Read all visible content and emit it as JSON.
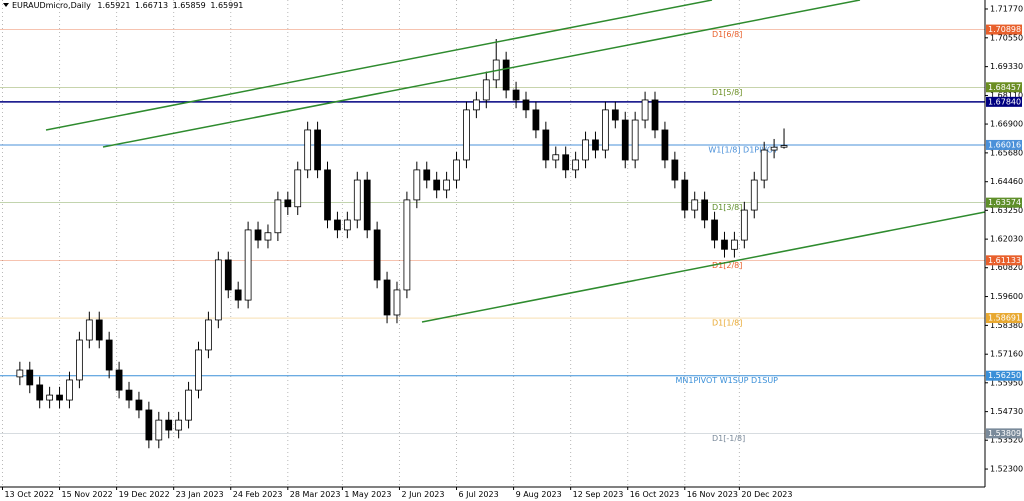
{
  "chart_data": {
    "type": "candlestick",
    "title": "EURAUDmicro,Daily",
    "xlim": [
      -8,
      389
    ],
    "ylim": [
      1.5154,
      1.7215
    ],
    "up_color": "#ffffff",
    "down_color": "#000000",
    "x": [
      0,
      4,
      8,
      12,
      16,
      20,
      24,
      28,
      32,
      36,
      40,
      44,
      48,
      52,
      56,
      60,
      64,
      68,
      72,
      76,
      80,
      84,
      88,
      92,
      96,
      100,
      104,
      108,
      112,
      116,
      120,
      124,
      128,
      132,
      136,
      140,
      144,
      148,
      152,
      156,
      160,
      164,
      168,
      172,
      176,
      180,
      184,
      188,
      192,
      196,
      200,
      204,
      208,
      212,
      216,
      220,
      224,
      228,
      232,
      236,
      240,
      244,
      248,
      252,
      256,
      260,
      264,
      268,
      272,
      276,
      280,
      284,
      288,
      292,
      296,
      300,
      304,
      308
    ],
    "open": [
      1.562,
      1.5649,
      1.5586,
      1.5522,
      1.5543,
      1.5522,
      1.5607,
      1.5776,
      1.5861,
      1.5776,
      1.5649,
      1.5564,
      1.5522,
      1.548,
      1.5353,
      1.5437,
      1.5395,
      1.5437,
      1.5564,
      1.5734,
      1.5861,
      1.6115,
      1.5988,
      1.5945,
      1.6242,
      1.6199,
      1.623,
      1.6369,
      1.634,
      1.6496,
      1.6665,
      1.6496,
      1.6284,
      1.6242,
      1.6284,
      1.6453,
      1.6242,
      1.603,
      1.5882,
      1.5988,
      1.6369,
      1.6496,
      1.6453,
      1.6411,
      1.6453,
      1.6538,
      1.675,
      1.6792,
      1.6877,
      1.6961,
      1.6834,
      1.6792,
      1.675,
      1.6665,
      1.6538,
      1.656,
      1.6496,
      1.6538,
      1.6623,
      1.658,
      1.675,
      1.6707,
      1.6538,
      1.6707,
      1.6792,
      1.6665,
      1.6538,
      1.6453,
      1.6326,
      1.6369,
      1.6284,
      1.6199,
      1.616,
      1.6199,
      1.6326,
      1.6453,
      1.658,
      1.65921
    ],
    "high": [
      1.5684,
      1.5684,
      1.5621,
      1.5578,
      1.5578,
      1.5642,
      1.5811,
      1.5896,
      1.5896,
      1.5811,
      1.5684,
      1.5599,
      1.5557,
      1.5515,
      1.5472,
      1.5472,
      1.5472,
      1.5599,
      1.5769,
      1.5896,
      1.615,
      1.615,
      1.6023,
      1.6277,
      1.6277,
      1.6265,
      1.6404,
      1.6404,
      1.6531,
      1.67,
      1.67,
      1.6531,
      1.6319,
      1.6319,
      1.6488,
      1.6488,
      1.6277,
      1.6065,
      1.6023,
      1.6404,
      1.6531,
      1.6531,
      1.6488,
      1.6488,
      1.6573,
      1.6785,
      1.6827,
      1.6912,
      1.705,
      1.6996,
      1.6869,
      1.6827,
      1.6785,
      1.67,
      1.6595,
      1.6595,
      1.6573,
      1.6658,
      1.6658,
      1.6785,
      1.6785,
      1.6742,
      1.6742,
      1.6827,
      1.6827,
      1.67,
      1.6573,
      1.6488,
      1.6404,
      1.6404,
      1.6319,
      1.6234,
      1.6234,
      1.6361,
      1.6488,
      1.6615,
      1.6627,
      1.66713
    ],
    "low": [
      1.5585,
      1.5551,
      1.5487,
      1.5487,
      1.5487,
      1.5487,
      1.5572,
      1.5741,
      1.5741,
      1.5614,
      1.5529,
      1.5487,
      1.5445,
      1.5318,
      1.5318,
      1.536,
      1.536,
      1.5402,
      1.5529,
      1.5699,
      1.5826,
      1.5953,
      1.591,
      1.591,
      1.6164,
      1.6164,
      1.6195,
      1.6305,
      1.6305,
      1.6461,
      1.6461,
      1.6249,
      1.6207,
      1.6207,
      1.6249,
      1.6207,
      1.5995,
      1.5847,
      1.5847,
      1.5953,
      1.6334,
      1.6418,
      1.6376,
      1.6376,
      1.6418,
      1.6503,
      1.6715,
      1.6757,
      1.6842,
      1.6799,
      1.6757,
      1.6715,
      1.663,
      1.6503,
      1.6503,
      1.6461,
      1.6461,
      1.6503,
      1.6545,
      1.6545,
      1.6672,
      1.6503,
      1.6503,
      1.6672,
      1.663,
      1.6503,
      1.6418,
      1.6291,
      1.6291,
      1.6249,
      1.6164,
      1.6125,
      1.6125,
      1.6164,
      1.6291,
      1.6418,
      1.6545,
      1.65859
    ],
    "close": [
      1.5649,
      1.5586,
      1.5522,
      1.5543,
      1.5522,
      1.5607,
      1.5776,
      1.5861,
      1.5776,
      1.5649,
      1.5564,
      1.5522,
      1.548,
      1.5353,
      1.5437,
      1.5395,
      1.5437,
      1.5564,
      1.5734,
      1.5861,
      1.6115,
      1.5988,
      1.5945,
      1.6242,
      1.6199,
      1.623,
      1.6369,
      1.634,
      1.6496,
      1.6665,
      1.6496,
      1.6284,
      1.6242,
      1.6284,
      1.6453,
      1.6242,
      1.603,
      1.5882,
      1.5988,
      1.6369,
      1.6496,
      1.6453,
      1.6411,
      1.6453,
      1.6538,
      1.675,
      1.6792,
      1.6877,
      1.6961,
      1.6834,
      1.6792,
      1.675,
      1.6665,
      1.6538,
      1.656,
      1.6496,
      1.6538,
      1.6623,
      1.658,
      1.675,
      1.6707,
      1.6538,
      1.6707,
      1.6792,
      1.6665,
      1.6538,
      1.6453,
      1.6326,
      1.6369,
      1.6284,
      1.6199,
      1.616,
      1.6199,
      1.6326,
      1.6453,
      1.658,
      1.6592,
      1.65991
    ],
    "yticks": [
      {
        "value": 1.7177,
        "label": "1.71770"
      },
      {
        "value": 1.7055,
        "label": "1.70550"
      },
      {
        "value": 1.6933,
        "label": "1.69330"
      },
      {
        "value": 1.6811,
        "label": "1.68110"
      },
      {
        "value": 1.669,
        "label": "1.66900"
      },
      {
        "value": 1.6568,
        "label": "1.65680"
      },
      {
        "value": 1.6446,
        "label": "1.64460"
      },
      {
        "value": 1.6325,
        "label": "1.63250"
      },
      {
        "value": 1.6203,
        "label": "1.62030"
      },
      {
        "value": 1.6082,
        "label": "1.60820"
      },
      {
        "value": 1.596,
        "label": "1.59600"
      },
      {
        "value": 1.5838,
        "label": "1.58380"
      },
      {
        "value": 1.5716,
        "label": "1.57160"
      },
      {
        "value": 1.5595,
        "label": "1.55950"
      },
      {
        "value": 1.5473,
        "label": "1.54730"
      },
      {
        "value": 1.5352,
        "label": "1.53520"
      },
      {
        "value": 1.523,
        "label": "1.52300"
      }
    ],
    "xticks": [
      {
        "value": -7,
        "label": "13 Oct 2022"
      },
      {
        "value": 16,
        "label": "15 Nov 2022"
      },
      {
        "value": 39,
        "label": "19 Dec 2022"
      },
      {
        "value": 62,
        "label": "23 Jan 2023"
      },
      {
        "value": 85,
        "label": "24 Feb 2023"
      },
      {
        "value": 108,
        "label": "28 Mar 2023"
      },
      {
        "value": 130,
        "label": "1 May 2023"
      },
      {
        "value": 153,
        "label": "2 Jun 2023"
      },
      {
        "value": 176,
        "label": "6 Jul 2023"
      },
      {
        "value": 199,
        "label": "9 Aug 2023"
      },
      {
        "value": 222,
        "label": "12 Sep 2023"
      },
      {
        "value": 245,
        "label": "16 Oct 2023"
      },
      {
        "value": 268,
        "label": "16 Nov 2023"
      },
      {
        "value": 290,
        "label": "20 Dec 2023"
      }
    ],
    "levels": [
      {
        "value": 1.70898,
        "name": "D1[6/8]",
        "color": "#e8602c"
      },
      {
        "value": 1.68457,
        "name": "D1[5/8]",
        "color": "#6b8e23"
      },
      {
        "value": 1.6784,
        "label": "1.67840",
        "color": "#000080"
      },
      {
        "value": 1.66016,
        "name": "W1[1/8] D1PIVOT",
        "color": "#4a90d9"
      },
      {
        "value": 1.63574,
        "name": "D1[3/8]",
        "color": "#5f8f2a"
      },
      {
        "value": 1.61133,
        "name": "D1[2/8]",
        "color": "#e8602c"
      },
      {
        "value": 1.58691,
        "name": "D1[1/8]",
        "color": "#e8a830"
      },
      {
        "value": 1.5625,
        "label": "1.56250",
        "name": "MN1PIVOT W1SUP D1SUP",
        "color": "#3a8fd8"
      },
      {
        "value": 1.53809,
        "name": "D1[-1/8]",
        "color": "#7a8a9a"
      }
    ]
  }
}
